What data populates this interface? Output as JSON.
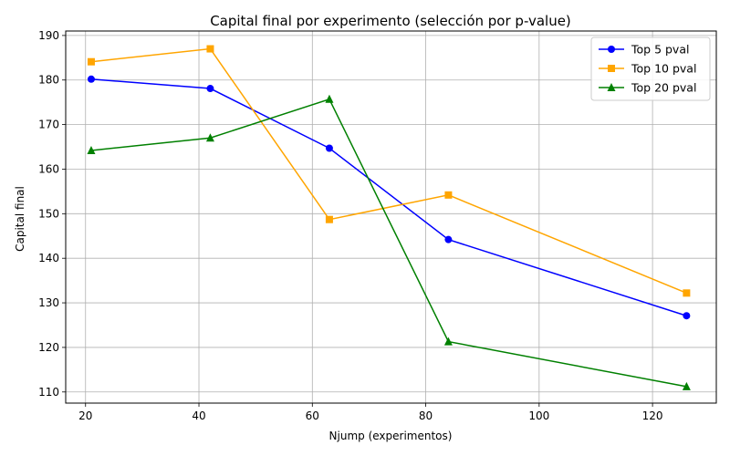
{
  "chart_data": {
    "type": "line",
    "title": "Capital final por experimento (selección por p-value)",
    "xlabel": "Njump (experimentos)",
    "ylabel": "Capital final",
    "xlim": [
      16.5,
      131.25
    ],
    "ylim": [
      107.5,
      191.0
    ],
    "xticks": [
      20,
      40,
      60,
      80,
      100,
      120
    ],
    "yticks": [
      110,
      120,
      130,
      140,
      150,
      160,
      170,
      180,
      190
    ],
    "grid": true,
    "legend_position": "top-right",
    "series": [
      {
        "name": "Top 5 pval",
        "color": "#0000ff",
        "marker": "circle",
        "x": [
          21,
          42,
          63,
          84,
          126
        ],
        "y": [
          180.2,
          178.1,
          164.7,
          144.2,
          127.1
        ]
      },
      {
        "name": "Top 10 pval",
        "color": "#ffa500",
        "marker": "square",
        "x": [
          21,
          42,
          63,
          84,
          126
        ],
        "y": [
          184.1,
          187.0,
          148.7,
          154.2,
          132.2
        ]
      },
      {
        "name": "Top 20 pval",
        "color": "#008000",
        "marker": "triangle",
        "x": [
          21,
          42,
          63,
          84,
          126
        ],
        "y": [
          164.2,
          167.0,
          175.7,
          121.3,
          111.2
        ]
      }
    ]
  }
}
